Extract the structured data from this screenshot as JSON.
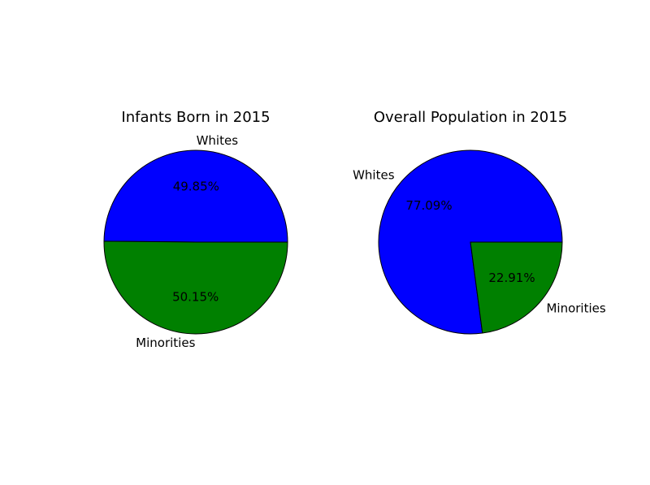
{
  "chart_data": [
    {
      "type": "pie",
      "title": "Infants Born in 2015",
      "labels": [
        "Whites",
        "Minorities"
      ],
      "values": [
        49.85,
        50.15
      ],
      "value_labels": [
        "49.85%",
        "50.15%"
      ],
      "colors": [
        "#0000ff",
        "#008000"
      ]
    },
    {
      "type": "pie",
      "title": "Overall Population in 2015",
      "labels": [
        "Whites",
        "Minorities"
      ],
      "values": [
        77.09,
        22.91
      ],
      "value_labels": [
        "77.09%",
        "22.91%"
      ],
      "colors": [
        "#0000ff",
        "#008000"
      ]
    }
  ]
}
